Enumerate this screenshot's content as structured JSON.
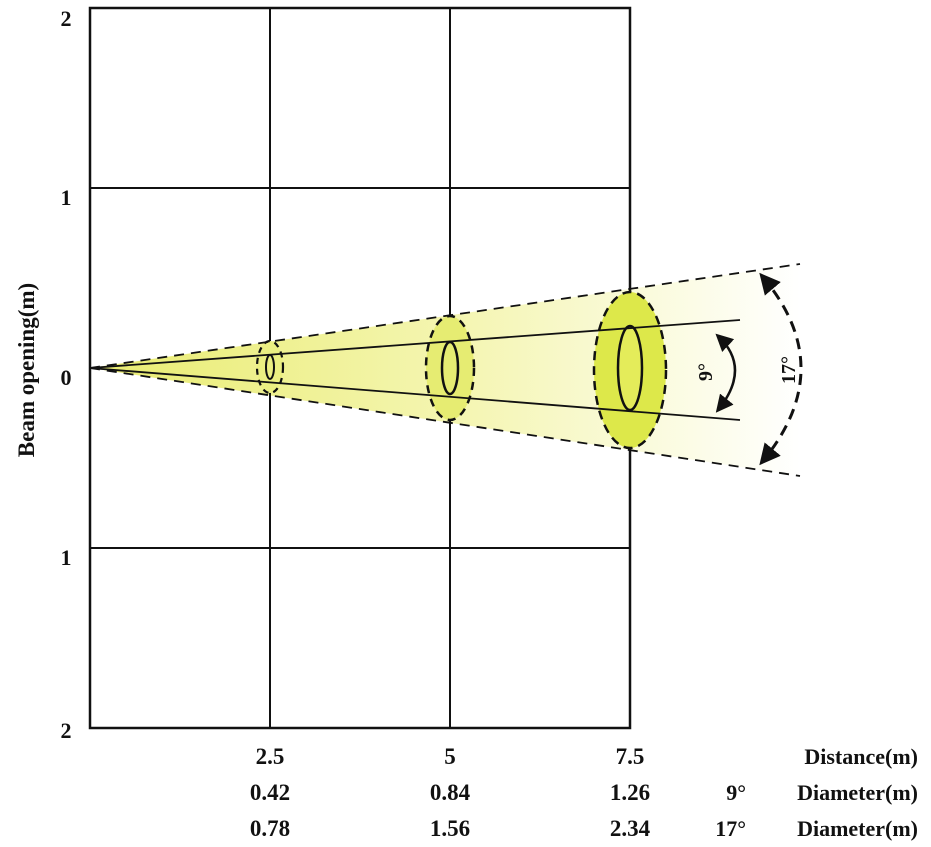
{
  "chart_data": {
    "type": "beam-diagram",
    "ylabel": "Beam opening(m)",
    "y_ticks": [
      "2",
      "1",
      "0",
      "1",
      "2"
    ],
    "distance_label": "Distance(m)",
    "distances": [
      "2.5",
      "5",
      "7.5"
    ],
    "narrow_beam": {
      "angle_label": "9°",
      "row_angle": "9°",
      "row_label": "Diameter(m)",
      "diameters": [
        "0.42",
        "0.84",
        "1.26"
      ]
    },
    "wide_beam": {
      "angle_label": "17°",
      "row_angle": "17°",
      "row_label": "Diameter(m)",
      "diameters": [
        "0.78",
        "1.56",
        "2.34"
      ]
    }
  },
  "colors": {
    "beam_light": "#fbfbd8",
    "beam_mid": "#eef08a",
    "beam_spot": "#dde84a",
    "line": "#111111"
  }
}
